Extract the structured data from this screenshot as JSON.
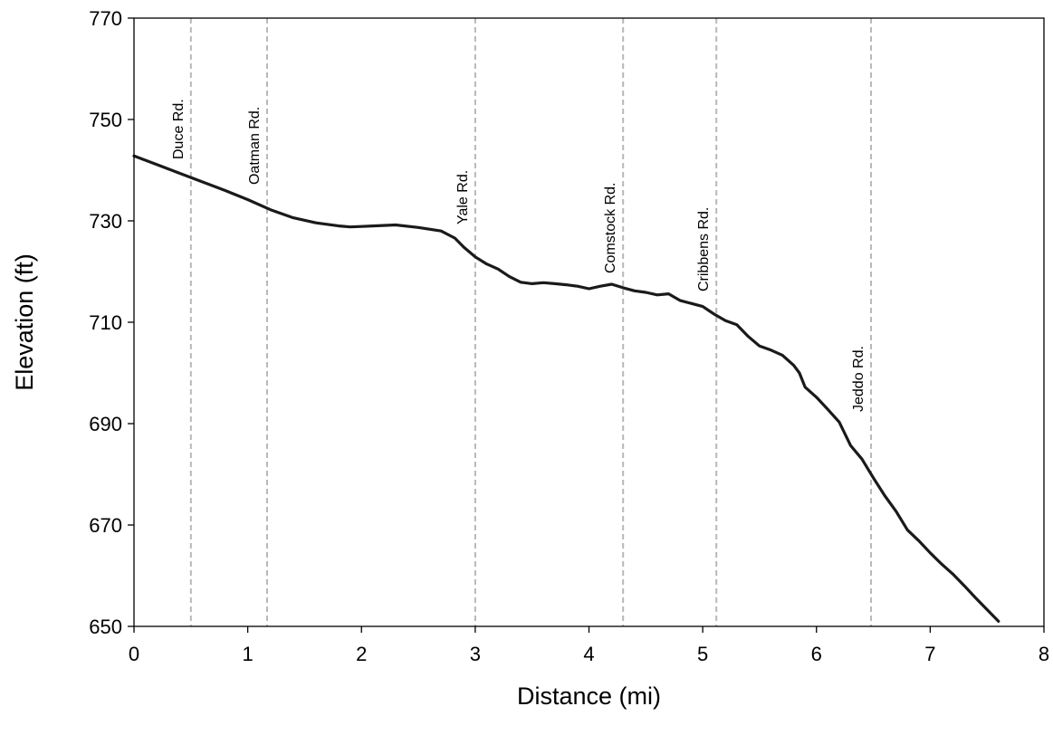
{
  "chart_data": {
    "type": "line",
    "title": "",
    "xlabel": "Distance (mi)",
    "ylabel": "Elevation (ft)",
    "xlim": [
      0,
      8
    ],
    "ylim": [
      650,
      770
    ],
    "xticks": [
      0,
      1,
      2,
      3,
      4,
      5,
      6,
      7,
      8
    ],
    "yticks": [
      650,
      670,
      690,
      710,
      730,
      750,
      770
    ],
    "grid": false,
    "series": [
      {
        "x": [
          0,
          0.2,
          0.4,
          0.6,
          0.8,
          1.0,
          1.2,
          1.4,
          1.6,
          1.8,
          1.9,
          2.0,
          2.1,
          2.3,
          2.5,
          2.7,
          2.82,
          2.9,
          3.0,
          3.1,
          3.2,
          3.3,
          3.4,
          3.5,
          3.6,
          3.7,
          3.8,
          3.9,
          4.0,
          4.1,
          4.2,
          4.3,
          4.4,
          4.5,
          4.6,
          4.7,
          4.8,
          5.0,
          5.1,
          5.2,
          5.3,
          5.4,
          5.5,
          5.6,
          5.7,
          5.8,
          5.85,
          5.9,
          6.0,
          6.1,
          6.2,
          6.3,
          6.4,
          6.5,
          6.6,
          6.7,
          6.8,
          6.9,
          7.0,
          7.1,
          7.2,
          7.3,
          7.4,
          7.6
        ],
        "y": [
          742.8,
          741.1,
          739.4,
          737.7,
          736.0,
          734.2,
          732.2,
          730.6,
          729.6,
          729.0,
          728.8,
          728.9,
          729.0,
          729.2,
          728.7,
          728.0,
          726.6,
          724.8,
          722.9,
          721.5,
          720.5,
          719.0,
          717.9,
          717.6,
          717.8,
          717.6,
          717.4,
          717.1,
          716.6,
          717.1,
          717.5,
          716.8,
          716.2,
          715.9,
          715.4,
          715.6,
          714.3,
          713.1,
          711.6,
          710.3,
          709.5,
          707.2,
          705.3,
          704.5,
          703.5,
          701.5,
          700.0,
          697.2,
          695.2,
          692.8,
          690.3,
          685.7,
          683.0,
          679.3,
          675.8,
          672.7,
          669.0,
          666.9,
          664.5,
          662.3,
          660.3,
          658.0,
          655.6,
          651.0
        ]
      }
    ],
    "annotations": [
      {
        "label": "Duce Rd.",
        "x": 0.5
      },
      {
        "label": "Oatman Rd.",
        "x": 1.17
      },
      {
        "label": "Yale Rd.",
        "x": 3.0
      },
      {
        "label": "Comstock Rd.",
        "x": 4.3
      },
      {
        "label": "Cribbens Rd.",
        "x": 5.12
      },
      {
        "label": "Jeddo Rd.",
        "x": 6.48
      }
    ],
    "line_color": "#1a1a1a",
    "reference_line_color": "#b8b8b8"
  }
}
